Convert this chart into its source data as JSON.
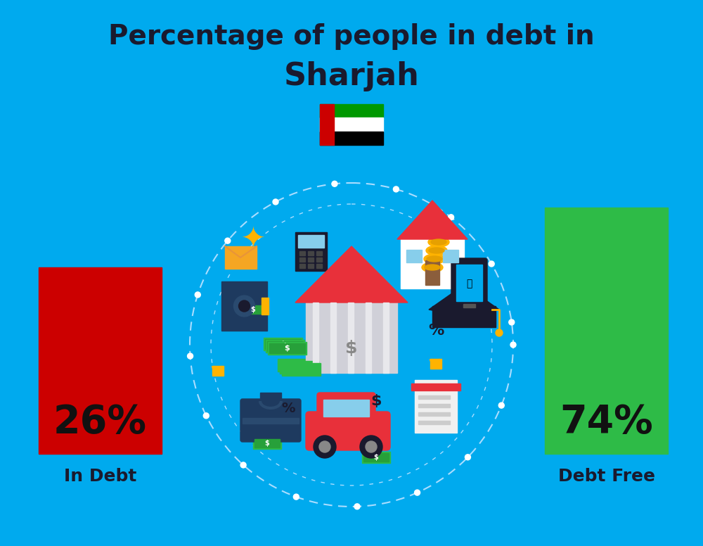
{
  "title_line1": "Percentage of people in debt in",
  "title_line2": "Sharjah",
  "background_color": "#00AAEE",
  "bar1_value": 26,
  "bar2_value": 74,
  "bar1_label": "In Debt",
  "bar2_label": "Debt Free",
  "bar1_pct": "26%",
  "bar2_pct": "74%",
  "bar1_color": "#CC0000",
  "bar2_color": "#2EBB47",
  "title_fontsize": 28,
  "subtitle_fontsize": 32,
  "pct_fontsize": 40,
  "label_fontsize": 18,
  "title_color": "#1a1a2e",
  "label_color": "#1a1a2e",
  "flag_green": "#009900",
  "flag_red": "#CC0000",
  "flag_white": "#FFFFFF",
  "flag_black": "#000000",
  "circle_color": "#FFFFFF",
  "dashed_circle_color": "#AADDFF",
  "bank_roof_color": "#E8303A",
  "bank_body_color": "#D0D0D8",
  "bank_pillar_color": "#E8E8EC",
  "house_roof_color": "#E8303A",
  "house_wall_color": "#FFFFFF",
  "safe_color": "#1E3A5F",
  "money_color": "#2EBB47",
  "car_color": "#E8303A",
  "grad_cap_color": "#1a1a2e",
  "coin_color": "#FFB300",
  "briefcase_color": "#1E3A5F",
  "eagle_color": "#FFB300"
}
